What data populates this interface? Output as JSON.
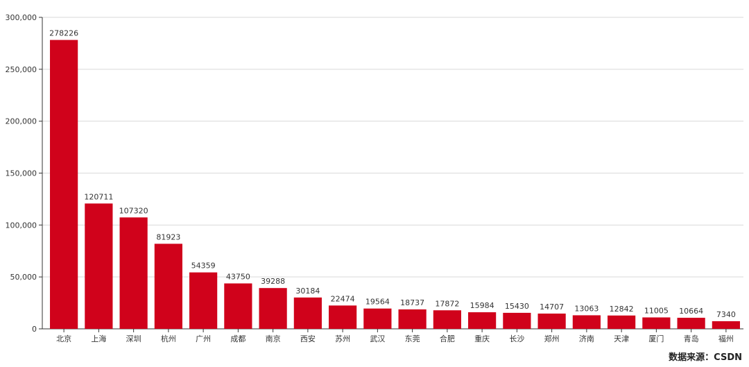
{
  "chart_data": {
    "type": "bar",
    "categories": [
      "北京",
      "上海",
      "深圳",
      "杭州",
      "广州",
      "成都",
      "南京",
      "西安",
      "苏州",
      "武汉",
      "东莞",
      "合肥",
      "重庆",
      "长沙",
      "郑州",
      "济南",
      "天津",
      "厦门",
      "青岛",
      "福州"
    ],
    "values": [
      278226,
      120711,
      107320,
      81923,
      54359,
      43750,
      39288,
      30184,
      22474,
      19564,
      18737,
      17872,
      15984,
      15430,
      14707,
      13063,
      12842,
      11005,
      10664,
      7340
    ],
    "y_ticks": [
      "0",
      "50,000",
      "100,000",
      "150,000",
      "200,000",
      "250,000",
      "300,000"
    ],
    "ylim": [
      0,
      300000
    ],
    "grid": true,
    "bar_color": "#d0021b"
  },
  "source_note": "数据来源：CSDN"
}
